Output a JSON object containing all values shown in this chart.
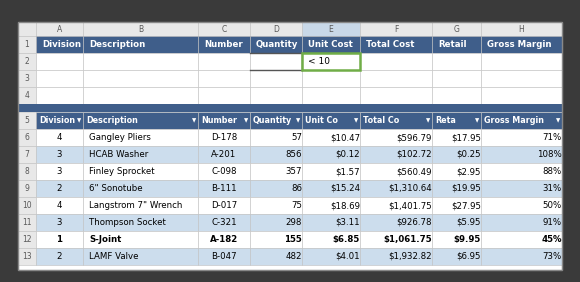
{
  "title_row": [
    "A",
    "B",
    "C",
    "D",
    "E",
    "F",
    "G",
    "H"
  ],
  "header_row1": [
    "Division",
    "Description",
    "Number",
    "Quantity",
    "Unit Cost",
    "Total Cost",
    "Retail",
    "Gross Margin"
  ],
  "row2_e2": "< 10",
  "header_row5": [
    "Division",
    "Description",
    "Number",
    "Quantity",
    "Unit Co",
    "Total Co",
    "Reta",
    "Gross Margin"
  ],
  "data_rows": [
    [
      "4",
      "Gangley Pliers",
      "D-178",
      "57",
      "$10.47",
      "$596.79",
      "$17.95",
      "71%"
    ],
    [
      "3",
      "HCAB Washer",
      "A-201",
      "856",
      "$0.12",
      "$102.72",
      "$0.25",
      "108%"
    ],
    [
      "3",
      "Finley Sprocket",
      "C-098",
      "357",
      "$1.57",
      "$560.49",
      "$2.95",
      "88%"
    ],
    [
      "2",
      "6\" Sonotube",
      "B-111",
      "86",
      "$15.24",
      "$1,310.64",
      "$19.95",
      "31%"
    ],
    [
      "4",
      "Langstrom 7\" Wrench",
      "D-017",
      "75",
      "$18.69",
      "$1,401.75",
      "$27.95",
      "50%"
    ],
    [
      "3",
      "Thompson Socket",
      "C-321",
      "298",
      "$3.11",
      "$926.78",
      "$5.95",
      "91%"
    ],
    [
      "1",
      "S-Joint",
      "A-182",
      "155",
      "$6.85",
      "$1,061.75",
      "$9.95",
      "45%"
    ],
    [
      "2",
      "LAMF Valve",
      "B-047",
      "482",
      "$4.01",
      "$1,932.82",
      "$6.95",
      "73%"
    ]
  ],
  "row12_bold": true,
  "header_bg": "#3F5E8A",
  "header_text_color": "#FFFFFF",
  "row_even_bg": "#FFFFFF",
  "row_odd_bg": "#CCDDED",
  "selected_cell_border": "#70AD47",
  "col_letter_bg": "#E8E8E8",
  "col_letter_text": "#595959",
  "row_num_bg": "#E8E8E8",
  "row_num_text": "#595959",
  "outer_bg": "#3A3A3A",
  "grid_color": "#C0C0C0",
  "filter_arrow": "▼",
  "spreadsheet_bg": "#FFFFFF"
}
